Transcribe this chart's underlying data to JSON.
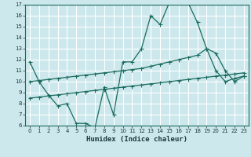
{
  "title": "",
  "xlabel": "Humidex (Indice chaleur)",
  "bg_color": "#cce8ec",
  "grid_color": "#b0d4d8",
  "line_color": "#1a6b5e",
  "xlim": [
    -0.5,
    23.5
  ],
  "ylim": [
    6,
    17
  ],
  "xticks": [
    0,
    1,
    2,
    3,
    4,
    5,
    6,
    7,
    8,
    9,
    10,
    11,
    12,
    13,
    14,
    15,
    16,
    17,
    18,
    19,
    20,
    21,
    22,
    23
  ],
  "yticks": [
    6,
    7,
    8,
    9,
    10,
    11,
    12,
    13,
    14,
    15,
    16,
    17
  ],
  "line1_x": [
    0,
    1,
    2,
    3,
    4,
    5,
    6,
    7,
    8,
    9,
    10,
    11,
    12,
    13,
    14,
    15,
    16,
    17,
    18,
    19,
    20,
    21,
    22,
    23
  ],
  "line1_y": [
    11.8,
    10.0,
    8.8,
    7.8,
    8.0,
    6.2,
    6.2,
    5.8,
    9.5,
    7.0,
    11.8,
    11.8,
    13.0,
    16.0,
    15.2,
    17.2,
    17.2,
    17.2,
    15.4,
    13.0,
    11.0,
    10.0,
    10.3,
    10.5
  ],
  "line2_x": [
    0,
    1,
    2,
    3,
    4,
    5,
    6,
    7,
    8,
    9,
    10,
    11,
    12,
    13,
    14,
    15,
    16,
    17,
    18,
    19,
    20,
    21,
    22,
    23
  ],
  "line2_y": [
    10.0,
    10.1,
    10.2,
    10.3,
    10.4,
    10.5,
    10.6,
    10.7,
    10.8,
    10.9,
    11.0,
    11.1,
    11.2,
    11.4,
    11.6,
    11.8,
    12.0,
    12.2,
    12.4,
    13.0,
    12.6,
    11.0,
    10.0,
    10.5
  ],
  "line3_x": [
    0,
    1,
    2,
    3,
    4,
    5,
    6,
    7,
    8,
    9,
    10,
    11,
    12,
    13,
    14,
    15,
    16,
    17,
    18,
    19,
    20,
    21,
    22,
    23
  ],
  "line3_y": [
    8.5,
    8.6,
    8.7,
    8.8,
    8.9,
    9.0,
    9.1,
    9.2,
    9.3,
    9.4,
    9.5,
    9.6,
    9.7,
    9.8,
    9.9,
    10.0,
    10.1,
    10.2,
    10.3,
    10.4,
    10.5,
    10.6,
    10.7,
    10.8
  ]
}
